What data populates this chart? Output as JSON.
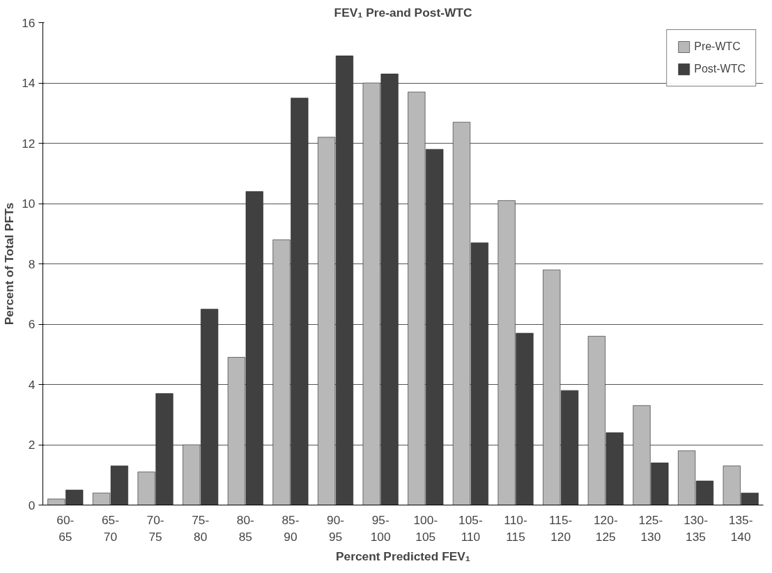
{
  "chart_data": {
    "type": "bar",
    "title": "FEV₁ Pre-and Post-WTC",
    "xlabel": "Percent Predicted FEV₁",
    "ylabel": "Percent of Total PFTs",
    "categories": [
      "60-65",
      "65-70",
      "70-75",
      "75-80",
      "80-85",
      "85-90",
      "90-95",
      "95-100",
      "100-105",
      "105-110",
      "110-115",
      "115-120",
      "120-125",
      "125-130",
      "130-135",
      "135-140"
    ],
    "series": [
      {
        "name": "Pre-WTC",
        "color": "#b8b8b8",
        "values": [
          0.2,
          0.4,
          1.1,
          2.0,
          4.9,
          8.8,
          12.2,
          14.0,
          13.7,
          12.7,
          10.1,
          7.8,
          5.6,
          3.3,
          1.8,
          1.3
        ]
      },
      {
        "name": "Post-WTC",
        "color": "#404040",
        "values": [
          0.5,
          1.3,
          3.7,
          6.5,
          10.4,
          13.5,
          14.9,
          14.3,
          11.8,
          8.7,
          5.7,
          3.8,
          2.4,
          1.4,
          0.8,
          0.4
        ]
      }
    ],
    "ylim": [
      0,
      16
    ],
    "yticks": [
      0,
      2,
      4,
      6,
      8,
      10,
      12,
      14,
      16
    ],
    "grid": "y",
    "legend": "top right"
  }
}
